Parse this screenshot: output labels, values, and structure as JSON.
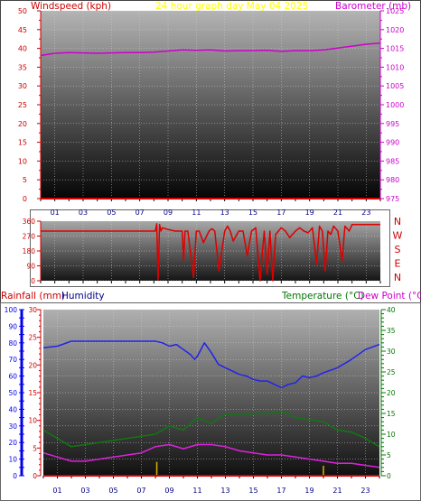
{
  "header": {
    "left_title": "Windspeed (kph)",
    "center_title": "24 hour graph day   May 04 2025",
    "right_title": "Barometer (mb)"
  },
  "bottom_header": {
    "rainfall_title": "Rainfall (mm)",
    "humidity_title": "Humidity",
    "temperature_title": "Temperature (°C)",
    "dewpoint_title": "Dew Point (°C)"
  },
  "colors": {
    "wind_axis": "#cc0000",
    "baro_axis": "#cc00cc",
    "title_yellow": "#ffff00",
    "wind_dir_line": "#dd0000",
    "humidity_axis": "#0000ee",
    "humidity_line": "#2222ee",
    "temp_axis": "#007700",
    "temp_line": "#117711",
    "dew_line": "#dd22dd",
    "rain_bars": "#ccaa00",
    "baseline": "#dd0000"
  },
  "x_tick_labels": [
    "01",
    "03",
    "05",
    "07",
    "09",
    "11",
    "13",
    "15",
    "17",
    "19",
    "21",
    "23"
  ],
  "compass_labels": [
    "N",
    "W",
    "S",
    "E",
    "N"
  ],
  "chart_data": [
    {
      "type": "line",
      "panel": "wind-barometer",
      "title": "24 hour graph day   May 04 2025",
      "y_left": {
        "label": "Windspeed (kph)",
        "ticks": [
          "0",
          "5",
          "10",
          "15",
          "20",
          "25",
          "30",
          "35",
          "40",
          "45",
          "50"
        ],
        "range": [
          0,
          50
        ]
      },
      "y_right": {
        "label": "Barometer (mb)",
        "ticks": [
          "975",
          "980",
          "985",
          "990",
          "995",
          "1000",
          "1005",
          "1010",
          "1015",
          "1020",
          "1025"
        ],
        "range": [
          975,
          1025
        ]
      },
      "series": [
        {
          "name": "Barometer (mb)",
          "axis": "right",
          "x": [
            0,
            1,
            2,
            3,
            4,
            5,
            6,
            7,
            8,
            9,
            10,
            11,
            12,
            13,
            14,
            15,
            16,
            17,
            18,
            19,
            20,
            21,
            22,
            23,
            24
          ],
          "values": [
            1013.1,
            1013.7,
            1013.9,
            1013.8,
            1013.7,
            1013.8,
            1013.9,
            1013.9,
            1014.0,
            1014.3,
            1014.6,
            1014.5,
            1014.6,
            1014.3,
            1014.4,
            1014.4,
            1014.5,
            1014.2,
            1014.4,
            1014.4,
            1014.6,
            1015.1,
            1015.6,
            1016.1,
            1016.4
          ]
        },
        {
          "name": "Windspeed (kph)",
          "axis": "left",
          "x": [
            0,
            24
          ],
          "values": [
            0,
            0
          ]
        }
      ]
    },
    {
      "type": "line",
      "panel": "wind-direction",
      "y_left": {
        "ticks": [
          "0",
          "90",
          "180",
          "270",
          "360"
        ],
        "range": [
          0,
          360
        ]
      },
      "series": [
        {
          "name": "Wind direction",
          "x": [
            0,
            8.1,
            8.2,
            8.3,
            8.4,
            8.5,
            8.6,
            8.8,
            9.0,
            9.5,
            10.0,
            10.1,
            10.2,
            10.4,
            10.8,
            11.0,
            11.2,
            11.5,
            11.9,
            12.1,
            12.3,
            12.6,
            13.0,
            13.2,
            13.4,
            13.6,
            14.0,
            14.3,
            14.6,
            14.9,
            15.2,
            15.5,
            15.8,
            16.0,
            16.2,
            16.4,
            16.6,
            16.8,
            17.0,
            17.3,
            17.6,
            18.0,
            18.3,
            18.6,
            18.9,
            19.2,
            19.5,
            19.7,
            19.9,
            20.1,
            20.3,
            20.5,
            20.7,
            21.0,
            21.3,
            21.5,
            21.8,
            22.0,
            24
          ],
          "values": [
            300,
            300,
            345,
            5,
            340,
            300,
            320,
            315,
            310,
            300,
            300,
            120,
            300,
            300,
            20,
            300,
            300,
            230,
            300,
            315,
            300,
            60,
            300,
            330,
            300,
            240,
            300,
            300,
            150,
            300,
            320,
            0,
            300,
            40,
            300,
            0,
            280,
            300,
            320,
            300,
            260,
            300,
            320,
            300,
            290,
            320,
            100,
            330,
            300,
            60,
            300,
            280,
            330,
            300,
            120,
            330,
            300,
            340,
            340
          ]
        }
      ]
    },
    {
      "type": "line",
      "panel": "rain-humidity-temperature",
      "y_rain": {
        "label": "Rainfall (mm)",
        "ticks": [
          "0",
          "5",
          "10",
          "15",
          "20",
          "25",
          "30"
        ],
        "range": [
          0,
          30
        ]
      },
      "y_humidity": {
        "label": "Humidity",
        "ticks": [
          "0",
          "10",
          "20",
          "30",
          "40",
          "50",
          "60",
          "70",
          "80",
          "90",
          "100"
        ],
        "range": [
          0,
          100
        ]
      },
      "y_temp": {
        "label": "Temperature (°C) Dew Point (°C)",
        "ticks": [
          "0",
          "5",
          "10",
          "15",
          "20",
          "25",
          "30",
          "35",
          "40"
        ],
        "range": [
          0,
          40
        ]
      },
      "series": [
        {
          "name": "Humidity",
          "axis": "humidity",
          "x": [
            0,
            1,
            2,
            3,
            4,
            5,
            6,
            7,
            8,
            8.5,
            9,
            9.5,
            10,
            10.5,
            10.8,
            11,
            11.5,
            12,
            12.5,
            13,
            13.5,
            14,
            14.5,
            15,
            15.5,
            16,
            16.5,
            17,
            17.5,
            18,
            18.5,
            19,
            19.5,
            20,
            21,
            22,
            23,
            24
          ],
          "values": [
            77,
            78,
            81,
            81,
            81,
            81,
            81,
            81,
            81,
            80,
            78,
            79,
            76,
            73,
            70,
            72,
            80,
            74,
            67,
            65,
            63,
            61,
            60,
            58,
            57,
            57,
            55,
            53,
            55,
            56,
            60,
            59,
            60,
            62,
            65,
            70,
            76,
            79
          ]
        },
        {
          "name": "Temperature (°C)",
          "axis": "temp",
          "x": [
            0,
            1,
            2,
            3,
            4,
            5,
            6,
            7,
            8,
            9,
            10,
            11,
            12,
            13,
            14,
            15,
            16,
            17,
            18,
            19,
            20,
            21,
            22,
            23,
            24
          ],
          "values": [
            11,
            9,
            7,
            7.5,
            8,
            8.5,
            9,
            9.5,
            10,
            12,
            11,
            14,
            12.5,
            15,
            14.5,
            15,
            15,
            15.5,
            14,
            13.5,
            13,
            11,
            10.5,
            9,
            7
          ]
        },
        {
          "name": "Dew Point (°C)",
          "axis": "temp",
          "x": [
            0,
            1,
            2,
            3,
            4,
            5,
            6,
            7,
            8,
            9,
            10,
            11,
            12,
            13,
            14,
            15,
            16,
            17,
            18,
            19,
            20,
            21,
            22,
            23,
            24
          ],
          "values": [
            5.5,
            4.5,
            3.5,
            3.5,
            4,
            4.5,
            5,
            5.5,
            7,
            7.5,
            6.5,
            7.5,
            7.5,
            7,
            6,
            5.5,
            5,
            5,
            4.5,
            4,
            3.5,
            3,
            3,
            2.5,
            2
          ]
        },
        {
          "name": "Rainfall (mm)",
          "axis": "rain",
          "type": "bar",
          "x": [
            8.1,
            20.0
          ],
          "values": [
            2.5,
            1.8
          ]
        }
      ]
    }
  ]
}
